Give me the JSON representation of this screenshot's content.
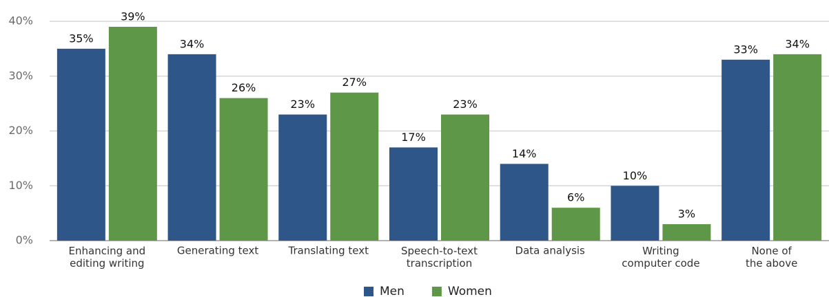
{
  "chart_data": {
    "type": "bar",
    "categories": [
      "Enhancing and\nediting writing",
      "Generating text",
      "Translating text",
      "Speech-to-text\ntranscription",
      "Data analysis",
      "Writing\ncomputer code",
      "None of\nthe above"
    ],
    "series": [
      {
        "name": "Men",
        "color": "#2e5689",
        "values": [
          35,
          34,
          23,
          17,
          14,
          10,
          33
        ],
        "value_labels": [
          "35%",
          "34%",
          "23%",
          "17%",
          "14%",
          "10%",
          "33%"
        ]
      },
      {
        "name": "Women",
        "color": "#5d9747",
        "values": [
          39,
          26,
          27,
          23,
          6,
          3,
          34
        ],
        "value_labels": [
          "39%",
          "26%",
          "27%",
          "23%",
          "6%",
          "3%",
          "34%"
        ]
      }
    ],
    "ylim": [
      0,
      40
    ],
    "yticks": [
      {
        "value": 0,
        "label": "0%"
      },
      {
        "value": 10,
        "label": "10%"
      },
      {
        "value": 20,
        "label": "20%"
      },
      {
        "value": 30,
        "label": "30%"
      },
      {
        "value": 40,
        "label": "40%"
      }
    ],
    "grid": true,
    "legend": "bottom"
  }
}
